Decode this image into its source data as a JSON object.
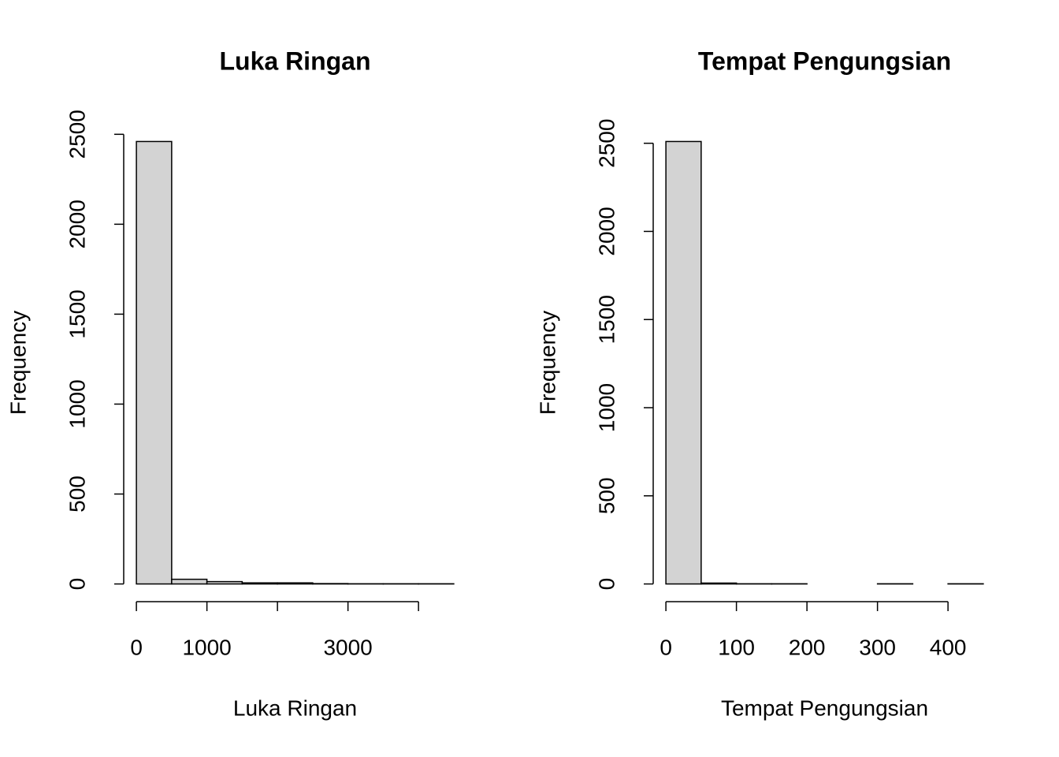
{
  "chart_data": [
    {
      "type": "histogram",
      "title": "Luka Ringan",
      "x_label": "Luka Ringan",
      "y_label": "Frequency",
      "bins": [
        0,
        500,
        1000,
        1500,
        2000,
        2500,
        3000,
        3500,
        4000,
        4500
      ],
      "values": [
        2460,
        26,
        13,
        6,
        6,
        2,
        1,
        1,
        1
      ],
      "color": "#d3d3d3",
      "xlim": [
        -180,
        4680
      ],
      "ylim": [
        -98.4,
        2558.4
      ],
      "xticks": [
        0,
        1000,
        {
          "value": 2000,
          "label": null
        },
        3000,
        {
          "value": 4000,
          "label": null
        }
      ],
      "yticks": [
        0,
        500,
        1000,
        1500,
        2000,
        2500
      ]
    },
    {
      "type": "histogram",
      "title": "Tempat Pengungsian",
      "x_label": "Tempat Pengungsian",
      "y_label": "Frequency",
      "bins": [
        0,
        50,
        100,
        150,
        200,
        250,
        300,
        350,
        400,
        450
      ],
      "values": [
        2510,
        5,
        1,
        1,
        0,
        0,
        1,
        0,
        1
      ],
      "color": "#d3d3d3",
      "xlim": [
        -18,
        468
      ],
      "ylim": [
        -100.4,
        2610.4
      ],
      "xticks": [
        0,
        100,
        200,
        300,
        400
      ],
      "yticks": [
        0,
        500,
        1000,
        1500,
        2000,
        2500
      ]
    }
  ]
}
